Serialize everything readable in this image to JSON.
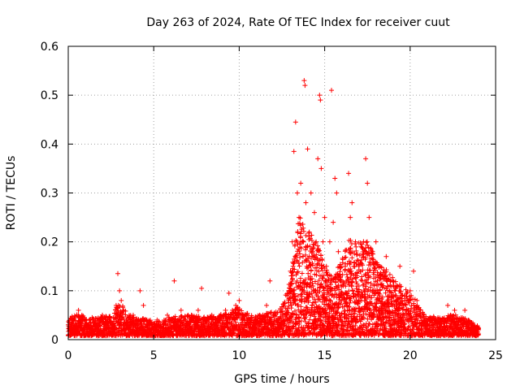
{
  "chart_data": {
    "type": "scatter",
    "title": "Day 263 of 2024, Rate Of TEC Index for receiver cuut",
    "xlabel": "GPS time / hours",
    "ylabel": "ROTI / TECUs",
    "xlim": [
      0,
      25
    ],
    "ylim": [
      0,
      0.6
    ],
    "xticks": [
      0,
      5,
      10,
      15,
      20,
      25
    ],
    "xtick_labels": [
      "0",
      "5",
      "10",
      "15",
      "20",
      "25"
    ],
    "yticks": [
      0,
      0.1,
      0.2,
      0.3,
      0.4,
      0.5,
      0.6
    ],
    "ytick_labels": [
      "0",
      "0.1",
      "0.2",
      "0.3",
      "0.4",
      "0.5",
      "0.6"
    ],
    "grid": true,
    "marker": "+",
    "marker_color": "#ff0000",
    "series": [
      {
        "name": "ROTI",
        "points": [
          [
            0.1,
            0.02
          ],
          [
            0.2,
            0.035
          ],
          [
            0.3,
            0.015
          ],
          [
            0.4,
            0.045
          ],
          [
            0.5,
            0.03
          ],
          [
            0.6,
            0.06
          ],
          [
            0.7,
            0.025
          ],
          [
            0.8,
            0.05
          ],
          [
            0.9,
            0.02
          ],
          [
            1.0,
            0.04
          ],
          [
            1.2,
            0.03
          ],
          [
            1.4,
            0.045
          ],
          [
            1.6,
            0.02
          ],
          [
            1.8,
            0.035
          ],
          [
            2.0,
            0.05
          ],
          [
            2.2,
            0.025
          ],
          [
            2.4,
            0.04
          ],
          [
            2.6,
            0.03
          ],
          [
            2.8,
            0.07
          ],
          [
            2.9,
            0.135
          ],
          [
            3.0,
            0.1
          ],
          [
            3.1,
            0.08
          ],
          [
            3.2,
            0.06
          ],
          [
            3.4,
            0.04
          ],
          [
            3.6,
            0.03
          ],
          [
            3.8,
            0.05
          ],
          [
            4.0,
            0.025
          ],
          [
            4.2,
            0.1
          ],
          [
            4.4,
            0.07
          ],
          [
            4.6,
            0.04
          ],
          [
            4.8,
            0.03
          ],
          [
            5.0,
            0.02
          ],
          [
            5.2,
            0.04
          ],
          [
            5.4,
            0.03
          ],
          [
            5.6,
            0.025
          ],
          [
            5.8,
            0.05
          ],
          [
            6.0,
            0.03
          ],
          [
            6.2,
            0.12
          ],
          [
            6.4,
            0.04
          ],
          [
            6.6,
            0.06
          ],
          [
            6.8,
            0.03
          ],
          [
            7.0,
            0.05
          ],
          [
            7.2,
            0.04
          ],
          [
            7.4,
            0.03
          ],
          [
            7.6,
            0.06
          ],
          [
            7.8,
            0.105
          ],
          [
            8.0,
            0.04
          ],
          [
            8.2,
            0.03
          ],
          [
            8.4,
            0.05
          ],
          [
            8.6,
            0.035
          ],
          [
            8.8,
            0.045
          ],
          [
            9.0,
            0.03
          ],
          [
            9.2,
            0.06
          ],
          [
            9.4,
            0.095
          ],
          [
            9.6,
            0.04
          ],
          [
            9.8,
            0.07
          ],
          [
            10.0,
            0.08
          ],
          [
            10.2,
            0.05
          ],
          [
            10.4,
            0.03
          ],
          [
            10.6,
            0.04
          ],
          [
            10.8,
            0.025
          ],
          [
            11.0,
            0.035
          ],
          [
            11.2,
            0.05
          ],
          [
            11.4,
            0.04
          ],
          [
            11.6,
            0.07
          ],
          [
            11.8,
            0.12
          ],
          [
            12.0,
            0.05
          ],
          [
            12.2,
            0.04
          ],
          [
            12.4,
            0.06
          ],
          [
            12.6,
            0.05
          ],
          [
            12.8,
            0.09
          ],
          [
            13.0,
            0.14
          ],
          [
            13.1,
            0.2
          ],
          [
            13.2,
            0.385
          ],
          [
            13.3,
            0.445
          ],
          [
            13.4,
            0.3
          ],
          [
            13.5,
            0.25
          ],
          [
            13.6,
            0.32
          ],
          [
            13.7,
            0.2
          ],
          [
            13.8,
            0.53
          ],
          [
            13.85,
            0.52
          ],
          [
            13.9,
            0.28
          ],
          [
            14.0,
            0.39
          ],
          [
            14.1,
            0.22
          ],
          [
            14.2,
            0.3
          ],
          [
            14.3,
            0.18
          ],
          [
            14.4,
            0.26
          ],
          [
            14.5,
            0.2
          ],
          [
            14.6,
            0.37
          ],
          [
            14.7,
            0.5
          ],
          [
            14.75,
            0.49
          ],
          [
            14.8,
            0.35
          ],
          [
            14.9,
            0.2
          ],
          [
            15.0,
            0.25
          ],
          [
            15.1,
            0.15
          ],
          [
            15.2,
            0.1
          ],
          [
            15.3,
            0.2
          ],
          [
            15.4,
            0.51
          ],
          [
            15.5,
            0.24
          ],
          [
            15.6,
            0.33
          ],
          [
            15.7,
            0.3
          ],
          [
            15.8,
            0.18
          ],
          [
            15.9,
            0.12
          ],
          [
            16.0,
            0.08
          ],
          [
            16.2,
            0.15
          ],
          [
            16.4,
            0.34
          ],
          [
            16.5,
            0.25
          ],
          [
            16.6,
            0.28
          ],
          [
            16.8,
            0.2
          ],
          [
            17.0,
            0.15
          ],
          [
            17.2,
            0.12
          ],
          [
            17.4,
            0.37
          ],
          [
            17.5,
            0.32
          ],
          [
            17.6,
            0.25
          ],
          [
            17.8,
            0.18
          ],
          [
            18.0,
            0.2
          ],
          [
            18.2,
            0.15
          ],
          [
            18.4,
            0.13
          ],
          [
            18.6,
            0.17
          ],
          [
            18.8,
            0.1
          ],
          [
            19.0,
            0.12
          ],
          [
            19.2,
            0.09
          ],
          [
            19.4,
            0.15
          ],
          [
            19.6,
            0.07
          ],
          [
            19.8,
            0.05
          ],
          [
            20.0,
            0.1
          ],
          [
            20.2,
            0.14
          ],
          [
            20.4,
            0.08
          ],
          [
            20.6,
            0.05
          ],
          [
            20.8,
            0.03
          ],
          [
            21.0,
            0.04
          ],
          [
            21.2,
            0.03
          ],
          [
            21.4,
            0.045
          ],
          [
            21.6,
            0.025
          ],
          [
            21.8,
            0.04
          ],
          [
            22.0,
            0.035
          ],
          [
            22.2,
            0.07
          ],
          [
            22.4,
            0.04
          ],
          [
            22.6,
            0.06
          ],
          [
            22.8,
            0.03
          ],
          [
            23.0,
            0.04
          ],
          [
            23.2,
            0.06
          ],
          [
            23.4,
            0.03
          ],
          [
            23.6,
            0.025
          ],
          [
            23.8,
            0.015
          ],
          [
            24.0,
            0.02
          ]
        ]
      }
    ],
    "density_envelope": {
      "x": [
        0,
        0.5,
        1,
        1.5,
        2,
        2.5,
        3,
        3.5,
        4,
        4.5,
        5,
        5.5,
        6,
        6.5,
        7,
        7.5,
        8,
        8.5,
        9,
        9.5,
        10,
        10.5,
        11,
        11.5,
        12,
        12.5,
        13,
        13.5,
        14,
        14.5,
        15,
        15.5,
        16,
        16.5,
        17,
        17.5,
        18,
        18.5,
        19,
        19.5,
        20,
        20.5,
        21,
        21.5,
        22,
        22.5,
        23,
        23.5,
        24
      ],
      "top": [
        0.035,
        0.045,
        0.04,
        0.035,
        0.04,
        0.04,
        0.07,
        0.045,
        0.035,
        0.035,
        0.03,
        0.03,
        0.04,
        0.04,
        0.045,
        0.04,
        0.04,
        0.04,
        0.045,
        0.05,
        0.06,
        0.045,
        0.04,
        0.045,
        0.05,
        0.06,
        0.12,
        0.25,
        0.22,
        0.2,
        0.14,
        0.12,
        0.16,
        0.2,
        0.19,
        0.2,
        0.15,
        0.14,
        0.12,
        0.1,
        0.1,
        0.06,
        0.04,
        0.04,
        0.04,
        0.045,
        0.04,
        0.03,
        0.02
      ]
    }
  }
}
